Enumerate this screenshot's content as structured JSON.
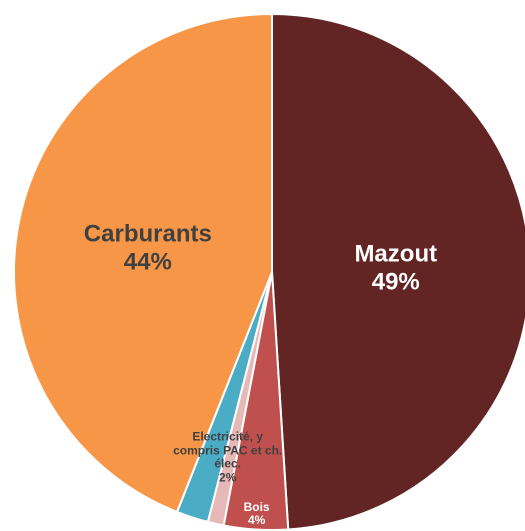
{
  "chart_data": {
    "type": "pie",
    "categories": [
      "Mazout",
      "Bois",
      null,
      "Electricité, y compris PAC et ch. élec.",
      "Carburants"
    ],
    "values": [
      49,
      4,
      1,
      2,
      44
    ],
    "value_labels": [
      "49%",
      "4%",
      null,
      "2%",
      "44%"
    ],
    "colors": [
      "#632523",
      "#c0504d",
      "#e6b9b8",
      "#4bacc6",
      "#f79646"
    ],
    "start_angle": 0,
    "direction": "clockwise"
  }
}
